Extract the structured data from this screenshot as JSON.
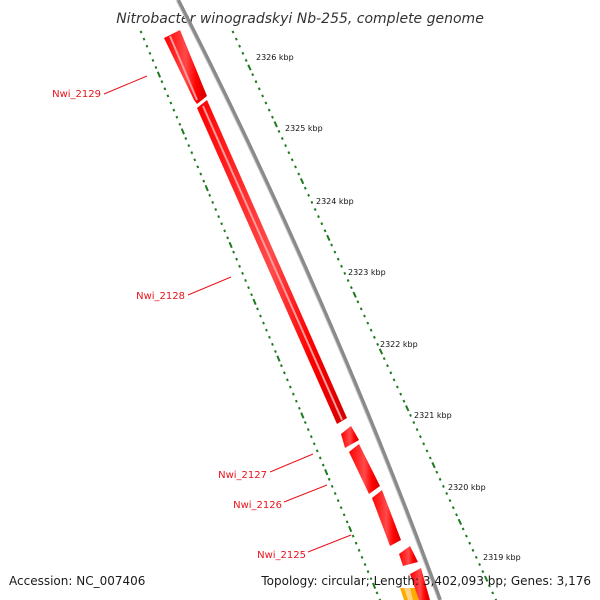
{
  "title": "Nitrobacter winogradskyi Nb-255, complete genome",
  "footer": {
    "accession": "Accession: NC_007406",
    "summary": "Topology: circular; Length: 3,402,093 bp; Genes: 3,176"
  },
  "ticks": [
    "2326 kbp",
    "2325 kbp",
    "2324 kbp",
    "2323 kbp",
    "2322 kbp",
    "2321 kbp",
    "2320 kbp",
    "2319 kbp"
  ],
  "genes": [
    {
      "label": "Nwi_2129"
    },
    {
      "label": "Nwi_2128"
    },
    {
      "label": "Nwi_2127"
    },
    {
      "label": "Nwi_2126"
    },
    {
      "label": "Nwi_2125"
    }
  ],
  "colors": {
    "gene": "#ff0000",
    "gene_highlight": "#ff8080",
    "backbone": "#808080",
    "tick": "#1e7a1e",
    "label": "#e8131b",
    "orange_feature": "#ffaa00"
  }
}
